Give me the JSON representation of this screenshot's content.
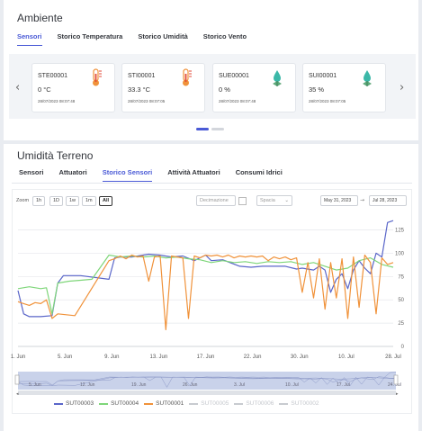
{
  "ambiente": {
    "title": "Ambiente",
    "tabs": [
      "Sensori",
      "Storico Temperatura",
      "Storico Umidità",
      "Storico Vento"
    ],
    "active_tab": 0,
    "sensors": [
      {
        "id": "STE00001",
        "value": "0 °C",
        "timestamp": "28/07/2023 08:07:48",
        "icon": "thermometer-icon"
      },
      {
        "id": "STI00001",
        "value": "33.3 °C",
        "timestamp": "28/07/2023 08:07:05",
        "icon": "thermometer-icon"
      },
      {
        "id": "SUE00001",
        "value": "0 %",
        "timestamp": "28/07/2023 08:07:48",
        "icon": "humidity-drop-icon"
      },
      {
        "id": "SUI00001",
        "value": "35 %",
        "timestamp": "28/07/2023 08:07:05",
        "icon": "humidity-drop-icon"
      }
    ],
    "carousel_pages": 2,
    "carousel_active": 0
  },
  "terreno": {
    "title": "Umidità Terreno",
    "tabs": [
      "Sensori",
      "Attuatori",
      "Storico Sensori",
      "Attività Attuatori",
      "Consumi Idrici"
    ],
    "active_tab": 2
  },
  "chart_controls": {
    "zoom_label": "Zoom",
    "zoom_buttons": [
      "1h",
      "1D",
      "1w",
      "1m",
      "All"
    ],
    "zoom_active": 4,
    "decimation_label": "Decimazione",
    "spacing_label": "Spacia",
    "date_from": "May 31, 2023",
    "date_sep": "→",
    "date_to": "Jul 28, 2023"
  },
  "navigator": {
    "labels": [
      "5. Jun",
      "12. Jun",
      "19. Jun",
      "26. Jun",
      "3. Jul",
      "10. Jul",
      "17. Jul",
      "24. Jul"
    ]
  },
  "chart_data": {
    "type": "line",
    "x_ticks": [
      "1. Jun",
      "5. Jun",
      "9. Jun",
      "13. Jun",
      "17. Jun",
      "22. Jun",
      "30. Jun",
      "10. Jul",
      "28. Jul"
    ],
    "y_ticks": [
      0,
      25,
      50,
      75,
      100,
      125
    ],
    "ylim": [
      0,
      140
    ],
    "grid": true,
    "legend_position": "bottom",
    "series": [
      {
        "name": "SUT00003",
        "color": "#5a66c9",
        "visible": true,
        "points": [
          [
            0,
            60
          ],
          [
            1,
            35
          ],
          [
            2,
            32
          ],
          [
            4,
            32
          ],
          [
            6,
            33
          ],
          [
            7,
            68
          ],
          [
            8,
            76
          ],
          [
            11,
            76
          ],
          [
            16,
            72
          ],
          [
            17,
            95
          ],
          [
            18,
            96
          ],
          [
            20,
            96
          ],
          [
            22,
            98
          ],
          [
            23,
            99
          ],
          [
            25,
            98
          ],
          [
            27,
            96
          ],
          [
            29,
            97
          ],
          [
            31,
            92
          ],
          [
            33,
            98
          ],
          [
            34,
            92
          ],
          [
            36,
            93
          ],
          [
            39,
            86
          ],
          [
            41,
            85
          ],
          [
            43,
            86
          ],
          [
            45,
            86
          ],
          [
            47,
            86
          ],
          [
            49,
            83
          ],
          [
            50,
            84
          ],
          [
            52,
            82
          ],
          [
            53,
            86
          ],
          [
            54,
            82
          ],
          [
            55,
            58
          ],
          [
            56,
            72
          ],
          [
            57,
            78
          ],
          [
            58,
            62
          ],
          [
            59,
            82
          ],
          [
            60,
            92
          ],
          [
            61,
            84
          ],
          [
            62,
            78
          ],
          [
            63,
            100
          ],
          [
            64,
            96
          ],
          [
            65,
            133
          ],
          [
            66,
            135
          ]
        ]
      },
      {
        "name": "SUT00004",
        "color": "#7fd67a",
        "visible": true,
        "points": [
          [
            0,
            62
          ],
          [
            2,
            64
          ],
          [
            4,
            62
          ],
          [
            5,
            63
          ],
          [
            6,
            35
          ],
          [
            7,
            68
          ],
          [
            9,
            70
          ],
          [
            11,
            71
          ],
          [
            13,
            72
          ],
          [
            16,
            98
          ],
          [
            18,
            96
          ],
          [
            20,
            97
          ],
          [
            22,
            96
          ],
          [
            24,
            97
          ],
          [
            26,
            95
          ],
          [
            28,
            96
          ],
          [
            30,
            94
          ],
          [
            32,
            93
          ],
          [
            34,
            90
          ],
          [
            36,
            92
          ],
          [
            38,
            90
          ],
          [
            40,
            91
          ],
          [
            42,
            89
          ],
          [
            44,
            91
          ],
          [
            46,
            90
          ],
          [
            48,
            91
          ],
          [
            50,
            88
          ],
          [
            52,
            90
          ],
          [
            54,
            86
          ],
          [
            56,
            82
          ],
          [
            58,
            84
          ],
          [
            60,
            92
          ],
          [
            62,
            95
          ],
          [
            64,
            88
          ],
          [
            66,
            85
          ]
        ]
      },
      {
        "name": "SUT00001",
        "color": "#f0923a",
        "visible": true,
        "points": [
          [
            0,
            48
          ],
          [
            1,
            46
          ],
          [
            2,
            44
          ],
          [
            3,
            47
          ],
          [
            4,
            46
          ],
          [
            5,
            50
          ],
          [
            6,
            30
          ],
          [
            7,
            35
          ],
          [
            10,
            33
          ],
          [
            16,
            92
          ],
          [
            17,
            94
          ],
          [
            18,
            97
          ],
          [
            19,
            94
          ],
          [
            20,
            98
          ],
          [
            21,
            96
          ],
          [
            22,
            97
          ],
          [
            23,
            70
          ],
          [
            24,
            96
          ],
          [
            25,
            97
          ],
          [
            26,
            18
          ],
          [
            27,
            97
          ],
          [
            28,
            96
          ],
          [
            29,
            95
          ],
          [
            30,
            30
          ],
          [
            31,
            97
          ],
          [
            32,
            95
          ],
          [
            33,
            98
          ],
          [
            34,
            97
          ],
          [
            35,
            98
          ],
          [
            36,
            96
          ],
          [
            37,
            98
          ],
          [
            38,
            95
          ],
          [
            39,
            97
          ],
          [
            40,
            96
          ],
          [
            41,
            97
          ],
          [
            42,
            96
          ],
          [
            43,
            97
          ],
          [
            44,
            92
          ],
          [
            45,
            96
          ],
          [
            46,
            94
          ],
          [
            47,
            96
          ],
          [
            48,
            93
          ],
          [
            49,
            95
          ],
          [
            50,
            58
          ],
          [
            51,
            90
          ],
          [
            52,
            52
          ],
          [
            53,
            94
          ],
          [
            54,
            40
          ],
          [
            55,
            90
          ],
          [
            56,
            52
          ],
          [
            57,
            94
          ],
          [
            58,
            30
          ],
          [
            59,
            96
          ],
          [
            60,
            42
          ],
          [
            61,
            98
          ],
          [
            62,
            90
          ],
          [
            63,
            35
          ],
          [
            64,
            95
          ],
          [
            65,
            88
          ],
          [
            66,
            90
          ]
        ]
      },
      {
        "name": "SUT00005",
        "color": "#c8cbd0",
        "visible": false
      },
      {
        "name": "SUT00006",
        "color": "#c8cbd0",
        "visible": false
      },
      {
        "name": "SUT00002",
        "color": "#c8cbd0",
        "visible": false
      }
    ]
  }
}
